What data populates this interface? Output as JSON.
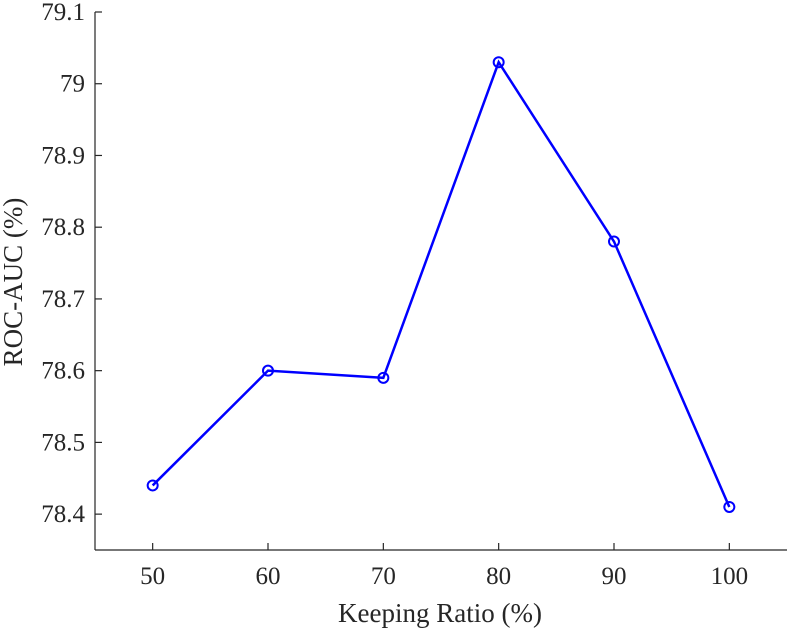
{
  "chart_data": {
    "type": "line",
    "xlabel": "Keeping Ratio (%)",
    "ylabel": "ROC-AUC (%)",
    "x": [
      50,
      60,
      70,
      80,
      90,
      100
    ],
    "x_ticks": [
      50,
      60,
      70,
      80,
      90,
      100
    ],
    "y_ticks": [
      78.4,
      78.5,
      78.6,
      78.7,
      78.8,
      78.9,
      79,
      79.1
    ],
    "xlim": [
      45,
      105
    ],
    "ylim": [
      78.35,
      79.1
    ],
    "series": [
      {
        "values": [
          78.44,
          78.6,
          78.59,
          79.03,
          78.78,
          78.41
        ],
        "color": "#0000ff",
        "marker": "circle"
      }
    ],
    "grid": false
  }
}
